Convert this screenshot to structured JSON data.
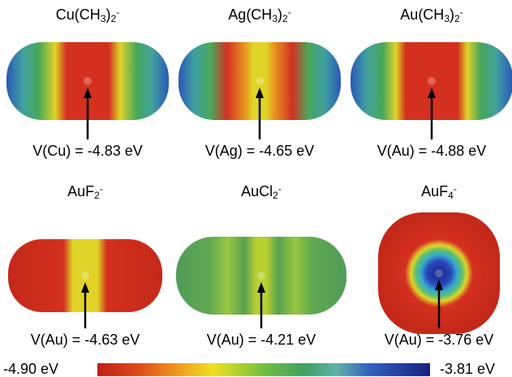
{
  "panels": [
    {
      "formula": [
        {
          "text": "Cu(CH"
        },
        {
          "sub": "3"
        },
        {
          "text": ")"
        },
        {
          "sub": "2"
        },
        {
          "sup": "-"
        }
      ],
      "label": "V(Cu) = -4.83 eV"
    },
    {
      "formula": [
        {
          "text": "Ag(CH"
        },
        {
          "sub": "3"
        },
        {
          "text": ")"
        },
        {
          "sub": "2"
        },
        {
          "sup": "-"
        }
      ],
      "label": "V(Ag) = -4.65 eV"
    },
    {
      "formula": [
        {
          "text": "Au(CH"
        },
        {
          "sub": "3"
        },
        {
          "text": ")"
        },
        {
          "sub": "2"
        },
        {
          "sup": "-"
        }
      ],
      "label": "V(Au) = -4.88 eV"
    },
    {
      "formula": [
        {
          "text": "AuF"
        },
        {
          "sub": "2"
        },
        {
          "sup": "-"
        }
      ],
      "label": "V(Au) = -4.63 eV"
    },
    {
      "formula": [
        {
          "text": "AuCl"
        },
        {
          "sub": "2"
        },
        {
          "sup": "-"
        }
      ],
      "label": "V(Au) = -4.21 eV"
    },
    {
      "formula": [
        {
          "text": "AuF"
        },
        {
          "sub": "4"
        },
        {
          "sup": "-"
        }
      ],
      "label": "V(Au) = -3.76 eV"
    }
  ],
  "colorbar": {
    "min_label": "-4.90 eV",
    "max_label": "-3.81 eV"
  }
}
